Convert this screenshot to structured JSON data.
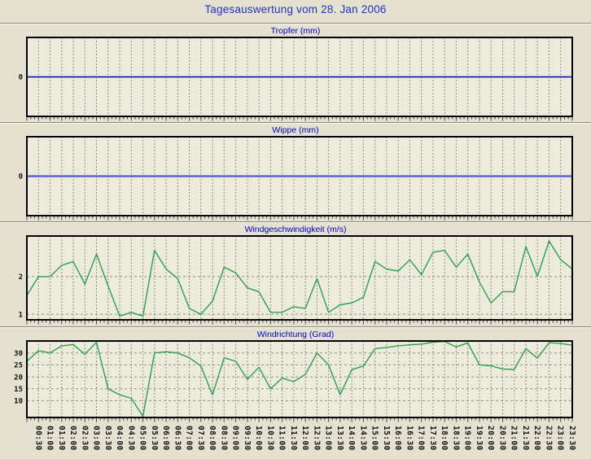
{
  "header": {
    "title": "Tagesauswertung vom 28. Jan 2006"
  },
  "colors": {
    "page_bg": "#e4e1d1",
    "plot_bg": "#edecdc",
    "header_title_blue": "#2233bb",
    "chart_title_blue": "#0000cc",
    "grid_gray": "#91917f",
    "axis_border": "#000000",
    "tick_label": "#111111",
    "tropfer_line": "#000099",
    "wippe_line": "#6060d8",
    "wind_line": "#2d9e50"
  },
  "x_axis": {
    "labels": [
      "00:30",
      "01:00",
      "01:30",
      "02:00",
      "02:30",
      "03:00",
      "03:30",
      "04:00",
      "04:30",
      "05:00",
      "05:30",
      "06:00",
      "06:30",
      "07:00",
      "07:30",
      "08:00",
      "08:30",
      "09:00",
      "09:30",
      "10:00",
      "10:30",
      "11:00",
      "11:30",
      "12:00",
      "12:30",
      "13:00",
      "13:30",
      "14:00",
      "14:30",
      "15:00",
      "15:30",
      "16:00",
      "16:30",
      "17:00",
      "17:30",
      "18:00",
      "18:30",
      "19:00",
      "19:30",
      "20:00",
      "20:30",
      "21:00",
      "21:30",
      "22:00",
      "22:30",
      "23:00",
      "23:30"
    ],
    "interval_minutes": 30
  },
  "chart_data": [
    {
      "type": "line",
      "title": "Tropfer (mm)",
      "ylabel": "mm",
      "yticks": [
        0
      ],
      "ylim": [
        -1,
        1
      ],
      "grid": true,
      "line_color_key": "tropfer_line",
      "line_width": 1.6,
      "show_x_labels": false,
      "values": [
        0,
        0,
        0,
        0,
        0,
        0,
        0,
        0,
        0,
        0,
        0,
        0,
        0,
        0,
        0,
        0,
        0,
        0,
        0,
        0,
        0,
        0,
        0,
        0,
        0,
        0,
        0,
        0,
        0,
        0,
        0,
        0,
        0,
        0,
        0,
        0,
        0,
        0,
        0,
        0,
        0,
        0,
        0,
        0,
        0,
        0,
        0,
        0
      ]
    },
    {
      "type": "line",
      "title": "Wippe (mm)",
      "ylabel": "mm",
      "yticks": [
        0
      ],
      "ylim": [
        -1,
        1
      ],
      "grid": true,
      "line_color_key": "wippe_line",
      "line_width": 2.4,
      "show_x_labels": false,
      "values": [
        0,
        0,
        0,
        0,
        0,
        0,
        0,
        0,
        0,
        0,
        0,
        0,
        0,
        0,
        0,
        0,
        0,
        0,
        0,
        0,
        0,
        0,
        0,
        0,
        0,
        0,
        0,
        0,
        0,
        0,
        0,
        0,
        0,
        0,
        0,
        0,
        0,
        0,
        0,
        0,
        0,
        0,
        0,
        0,
        0,
        0,
        0,
        0
      ]
    },
    {
      "type": "line",
      "title": "Windgeschwindigkeit (m/s)",
      "ylabel": "m/s",
      "yticks": [
        1,
        2
      ],
      "ylim": [
        0.85,
        3.08
      ],
      "grid": true,
      "line_color_key": "wind_line",
      "line_width": 1.4,
      "show_x_labels": false,
      "values": [
        1.5,
        2.0,
        2.0,
        2.3,
        2.4,
        1.8,
        2.6,
        1.75,
        0.95,
        1.05,
        0.95,
        2.7,
        2.2,
        1.95,
        1.15,
        1.0,
        1.35,
        2.25,
        2.1,
        1.7,
        1.6,
        1.05,
        1.05,
        1.2,
        1.15,
        1.95,
        1.05,
        1.25,
        1.3,
        1.45,
        2.4,
        2.2,
        2.15,
        2.45,
        2.05,
        2.65,
        2.7,
        2.25,
        2.6,
        1.85,
        1.3,
        1.6,
        1.6,
        2.8,
        2.0,
        2.95,
        2.45,
        2.2
      ]
    },
    {
      "type": "line",
      "title": "Windrichtung (Grad)",
      "ylabel": "Grad",
      "yticks": [
        10,
        15,
        20,
        25,
        30
      ],
      "ylim": [
        3,
        35
      ],
      "grid": true,
      "line_color_key": "wind_line",
      "line_width": 1.4,
      "show_x_labels": true,
      "values": [
        26.5,
        31,
        30,
        33,
        33.5,
        29.5,
        34.5,
        15,
        12.5,
        11,
        3.5,
        30,
        30.5,
        30,
        28,
        24.5,
        12.5,
        28,
        26.5,
        19,
        24,
        15,
        19.5,
        18,
        21,
        30,
        25,
        12.5,
        23,
        24.5,
        31.8,
        32.3,
        33,
        33.4,
        33.7,
        34.5,
        34.8,
        32.5,
        34.2,
        25,
        24.6,
        23.3,
        23.1,
        31.8,
        27.8,
        34.3,
        34,
        33.2
      ]
    }
  ]
}
